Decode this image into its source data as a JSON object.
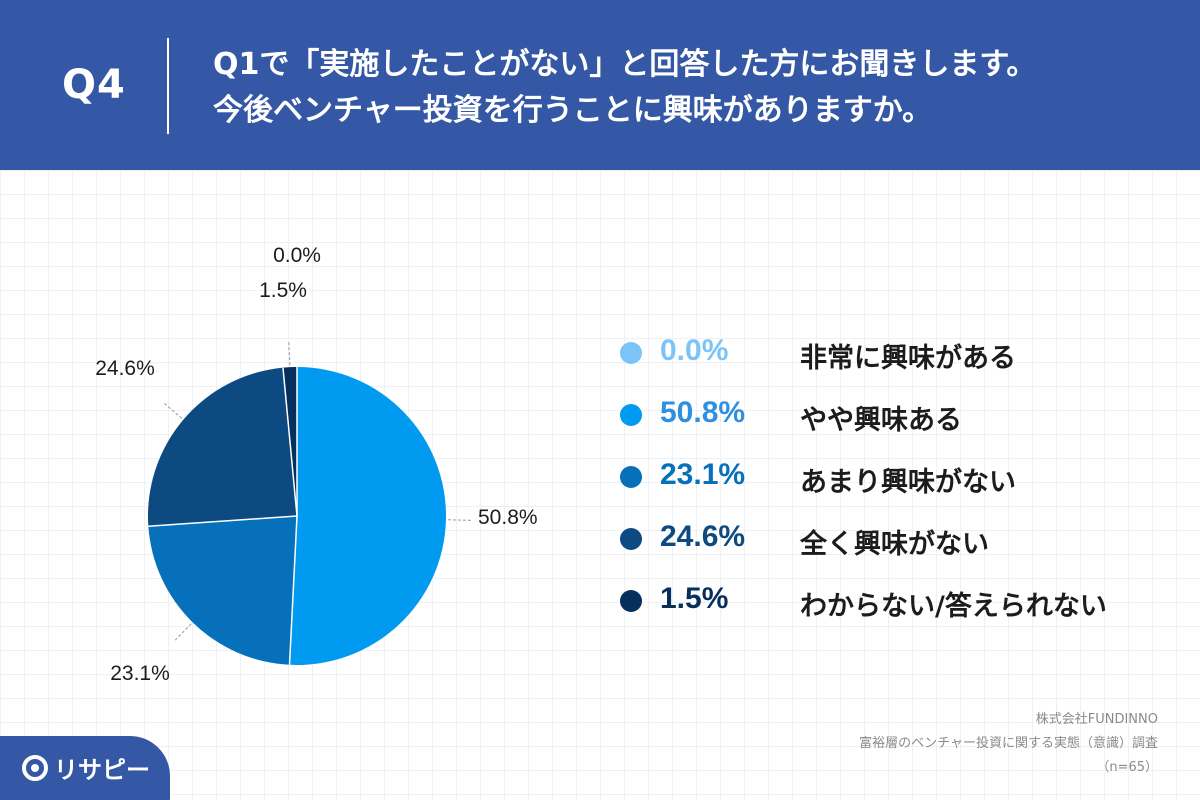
{
  "header": {
    "q_label": "Q4",
    "title_line1": "Q1で「実施したことがない」と回答した方にお聞きします。",
    "title_line2": "今後ベンチャー投資を行うことに興味がありますか。"
  },
  "colors": {
    "header_bg": "#3457a6",
    "s0": "#7cc4f8",
    "s1": "#009bf0",
    "s2": "#0670bb",
    "s3": "#0e4a82",
    "s4": "#062f5e"
  },
  "chart_data": {
    "type": "pie",
    "n": 65,
    "slices": [
      {
        "label": "非常に興味がある",
        "value": 0.0,
        "pct_text": "0.0%"
      },
      {
        "label": "やや興味ある",
        "value": 50.8,
        "pct_text": "50.8%"
      },
      {
        "label": "あまり興味がない",
        "value": 23.1,
        "pct_text": "23.1%"
      },
      {
        "label": "全く興味がない",
        "value": 24.6,
        "pct_text": "24.6%"
      },
      {
        "label": "わからない/答えられない",
        "value": 1.5,
        "pct_text": "1.5%"
      }
    ]
  },
  "source": {
    "company": "株式会社FUNDINNO",
    "survey": "富裕層のベンチャー投資に関する実態（意識）調査",
    "n_text": "（n=65）"
  },
  "logo": {
    "text": "リサピー"
  }
}
